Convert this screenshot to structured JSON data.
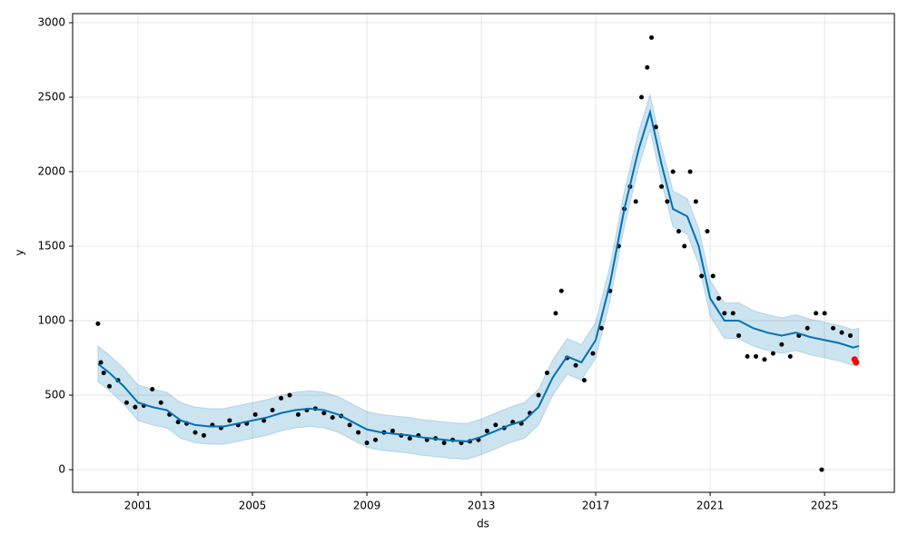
{
  "chart_data": {
    "type": "line",
    "x_label": "ds",
    "y_label": "y",
    "xlim": [
      1998.714,
      2027.44
    ],
    "ylim": [
      -152,
      3061
    ],
    "xticks": [
      2001,
      2005,
      2009,
      2013,
      2017,
      2021,
      2025
    ],
    "yticks": [
      0,
      500,
      1000,
      1500,
      2000,
      2500,
      3000
    ],
    "grid": true,
    "observed": {
      "color": "#000000",
      "x": [
        1999.6,
        1999.7,
        1999.8,
        2000.0,
        2000.3,
        2000.6,
        2000.9,
        2001.2,
        2001.5,
        2001.8,
        2002.1,
        2002.4,
        2002.7,
        2003.0,
        2003.3,
        2003.6,
        2003.9,
        2004.2,
        2004.5,
        2004.8,
        2005.1,
        2005.4,
        2005.7,
        2006.0,
        2006.3,
        2006.6,
        2006.9,
        2007.2,
        2007.5,
        2007.8,
        2008.1,
        2008.4,
        2008.7,
        2009.0,
        2009.3,
        2009.6,
        2009.9,
        2010.2,
        2010.5,
        2010.8,
        2011.1,
        2011.4,
        2011.7,
        2012.0,
        2012.3,
        2012.6,
        2012.9,
        2013.2,
        2013.5,
        2013.8,
        2014.1,
        2014.4,
        2014.7,
        2015.0,
        2015.3,
        2015.6,
        2015.8,
        2016.0,
        2016.3,
        2016.6,
        2016.9,
        2017.2,
        2017.5,
        2017.8,
        2018.0,
        2018.2,
        2018.4,
        2018.6,
        2018.8,
        2018.95,
        2019.1,
        2019.3,
        2019.5,
        2019.7,
        2019.9,
        2020.1,
        2020.3,
        2020.5,
        2020.7,
        2020.9,
        2021.1,
        2021.3,
        2021.5,
        2021.8,
        2022.0,
        2022.3,
        2022.6,
        2022.9,
        2023.2,
        2023.5,
        2023.8,
        2024.1,
        2024.4,
        2024.7,
        2024.9,
        2025.0,
        2025.3,
        2025.6,
        2025.9
      ],
      "values": [
        980,
        720,
        650,
        560,
        600,
        450,
        420,
        430,
        540,
        450,
        370,
        320,
        310,
        250,
        230,
        300,
        280,
        330,
        300,
        310,
        370,
        330,
        400,
        480,
        500,
        370,
        400,
        410,
        380,
        350,
        360,
        300,
        250,
        180,
        200,
        250,
        260,
        230,
        210,
        230,
        200,
        210,
        180,
        200,
        180,
        190,
        200,
        260,
        300,
        280,
        320,
        310,
        380,
        500,
        650,
        1050,
        1200,
        750,
        700,
        600,
        780,
        950,
        1200,
        1500,
        1750,
        1900,
        1800,
        2500,
        2700,
        2900,
        2300,
        1900,
        1800,
        2000,
        1600,
        1500,
        2000,
        1800,
        1300,
        1600,
        1300,
        1150,
        1050,
        1050,
        900,
        760,
        760,
        740,
        780,
        840,
        760,
        900,
        950,
        1050,
        0,
        1050,
        950,
        920,
        900
      ]
    },
    "forecast": {
      "color": "#0072B2",
      "x": [
        1999.6,
        2000.0,
        2000.5,
        2001.0,
        2001.5,
        2002.0,
        2002.5,
        2003.0,
        2003.5,
        2004.0,
        2004.5,
        2005.0,
        2005.5,
        2006.0,
        2006.5,
        2007.0,
        2007.5,
        2008.0,
        2008.5,
        2009.0,
        2009.5,
        2010.0,
        2010.5,
        2011.0,
        2011.5,
        2012.0,
        2012.5,
        2013.0,
        2013.5,
        2014.0,
        2014.5,
        2015.0,
        2015.5,
        2016.0,
        2016.5,
        2017.0,
        2017.5,
        2018.0,
        2018.5,
        2018.9,
        2019.3,
        2019.7,
        2020.2,
        2020.6,
        2021.0,
        2021.5,
        2022.0,
        2022.5,
        2023.0,
        2023.5,
        2024.0,
        2024.5,
        2025.0,
        2025.5,
        2026.0,
        2026.2
      ],
      "values": [
        710,
        650,
        560,
        450,
        420,
        400,
        330,
        300,
        290,
        290,
        310,
        330,
        350,
        380,
        400,
        410,
        400,
        370,
        320,
        270,
        250,
        240,
        230,
        215,
        205,
        195,
        190,
        220,
        260,
        300,
        330,
        420,
        620,
        760,
        720,
        870,
        1250,
        1750,
        2150,
        2400,
        2050,
        1750,
        1700,
        1500,
        1150,
        1000,
        1000,
        950,
        920,
        900,
        920,
        890,
        870,
        850,
        820,
        830
      ],
      "lower": [
        590,
        530,
        440,
        330,
        300,
        280,
        210,
        180,
        170,
        170,
        190,
        210,
        230,
        260,
        280,
        290,
        280,
        250,
        200,
        150,
        130,
        120,
        110,
        95,
        85,
        75,
        70,
        100,
        140,
        180,
        210,
        300,
        500,
        640,
        600,
        750,
        1130,
        1630,
        2030,
        2280,
        1930,
        1630,
        1580,
        1380,
        1030,
        880,
        880,
        830,
        800,
        780,
        800,
        770,
        750,
        730,
        700,
        710
      ],
      "upper": [
        830,
        770,
        680,
        570,
        540,
        520,
        450,
        420,
        410,
        410,
        430,
        450,
        470,
        500,
        520,
        530,
        520,
        490,
        440,
        390,
        370,
        360,
        350,
        335,
        325,
        315,
        310,
        340,
        380,
        420,
        450,
        540,
        740,
        880,
        840,
        990,
        1370,
        1870,
        2270,
        2520,
        2170,
        1870,
        1820,
        1620,
        1270,
        1120,
        1120,
        1070,
        1040,
        1020,
        1040,
        1010,
        990,
        970,
        940,
        950
      ]
    },
    "future_points": {
      "color": "#ff0000",
      "x": [
        2026.05,
        2026.1
      ],
      "values": [
        740,
        720
      ]
    }
  }
}
